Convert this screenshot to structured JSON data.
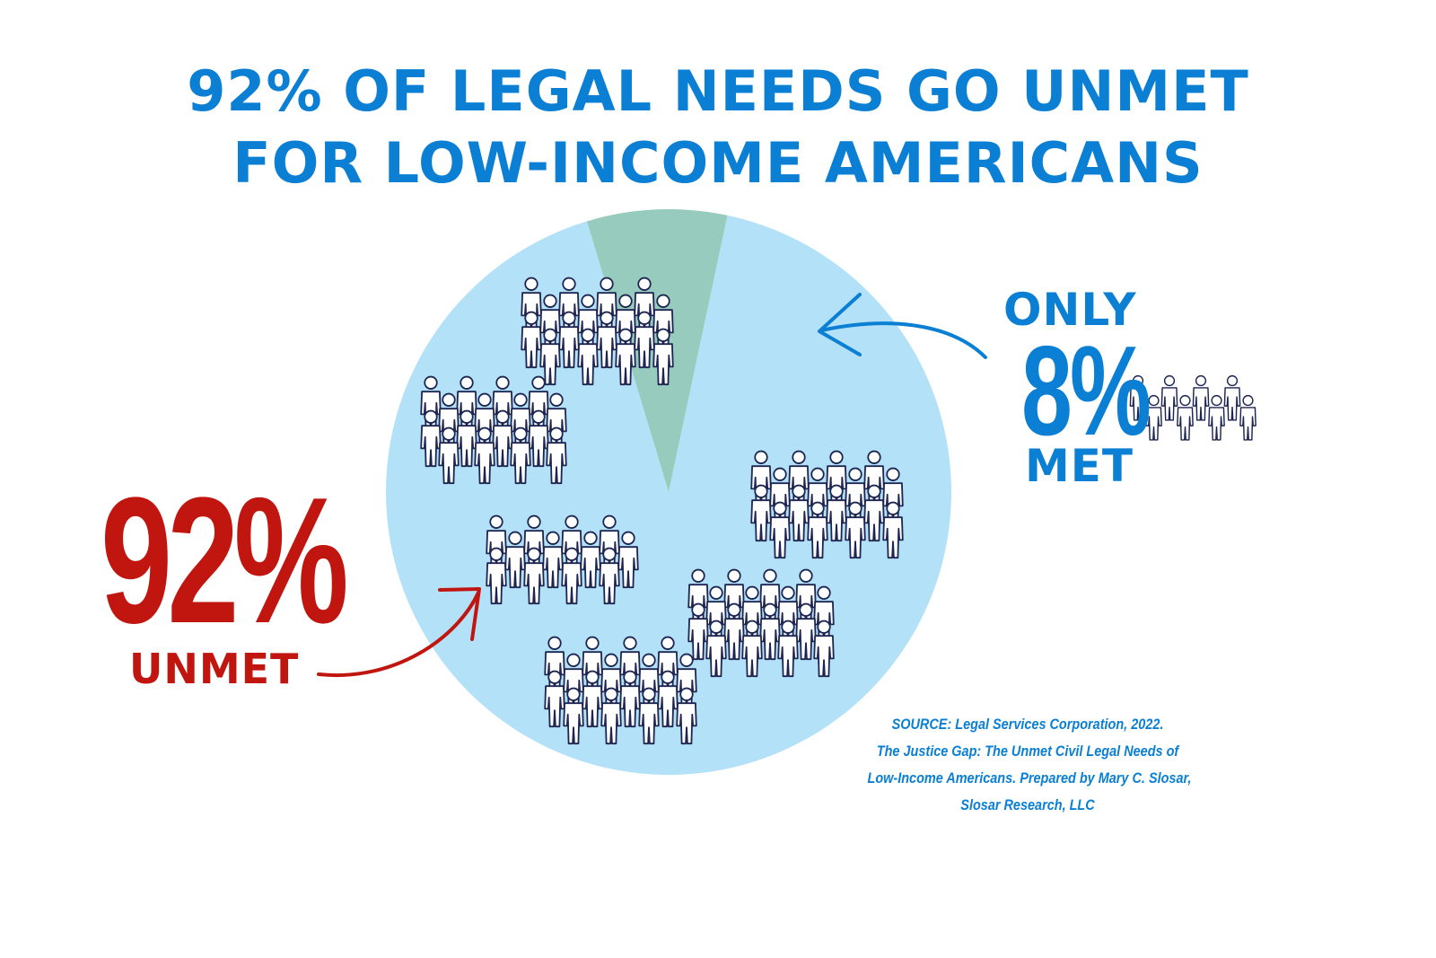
{
  "title": {
    "line1": "92% OF LEGAL NEEDS GO UNMET",
    "line2": "FOR LOW-INCOME AMERICANS"
  },
  "colors": {
    "title_blue": "#0a7fd3",
    "unmet_red": "#c0160f",
    "unmet_slice": "#b3e1f8",
    "met_slice": "#96cbbd",
    "figure_outline": "#1d2552"
  },
  "icons": {
    "people_crowd": "person-outline-icon",
    "arrows": "curved-arrow-icon"
  },
  "chart_data": {
    "type": "pie",
    "slices": [
      {
        "label": "UNMET",
        "value": 92
      },
      {
        "label": "MET",
        "value": 8
      }
    ]
  },
  "labels": {
    "unmet_percent": "92%",
    "unmet_word": "UNMET",
    "met_only": "ONLY",
    "met_percent": "8%",
    "met_word": "MET"
  },
  "source": {
    "line1": "SOURCE:  Legal Services Corporation, 2022.",
    "line2": "The Justice Gap:  The Unmet Civil Legal Needs of",
    "line3": "Low-Income Americans.  Prepared by Mary C. Slosar,",
    "line4": "Slosar Research, LLC"
  }
}
